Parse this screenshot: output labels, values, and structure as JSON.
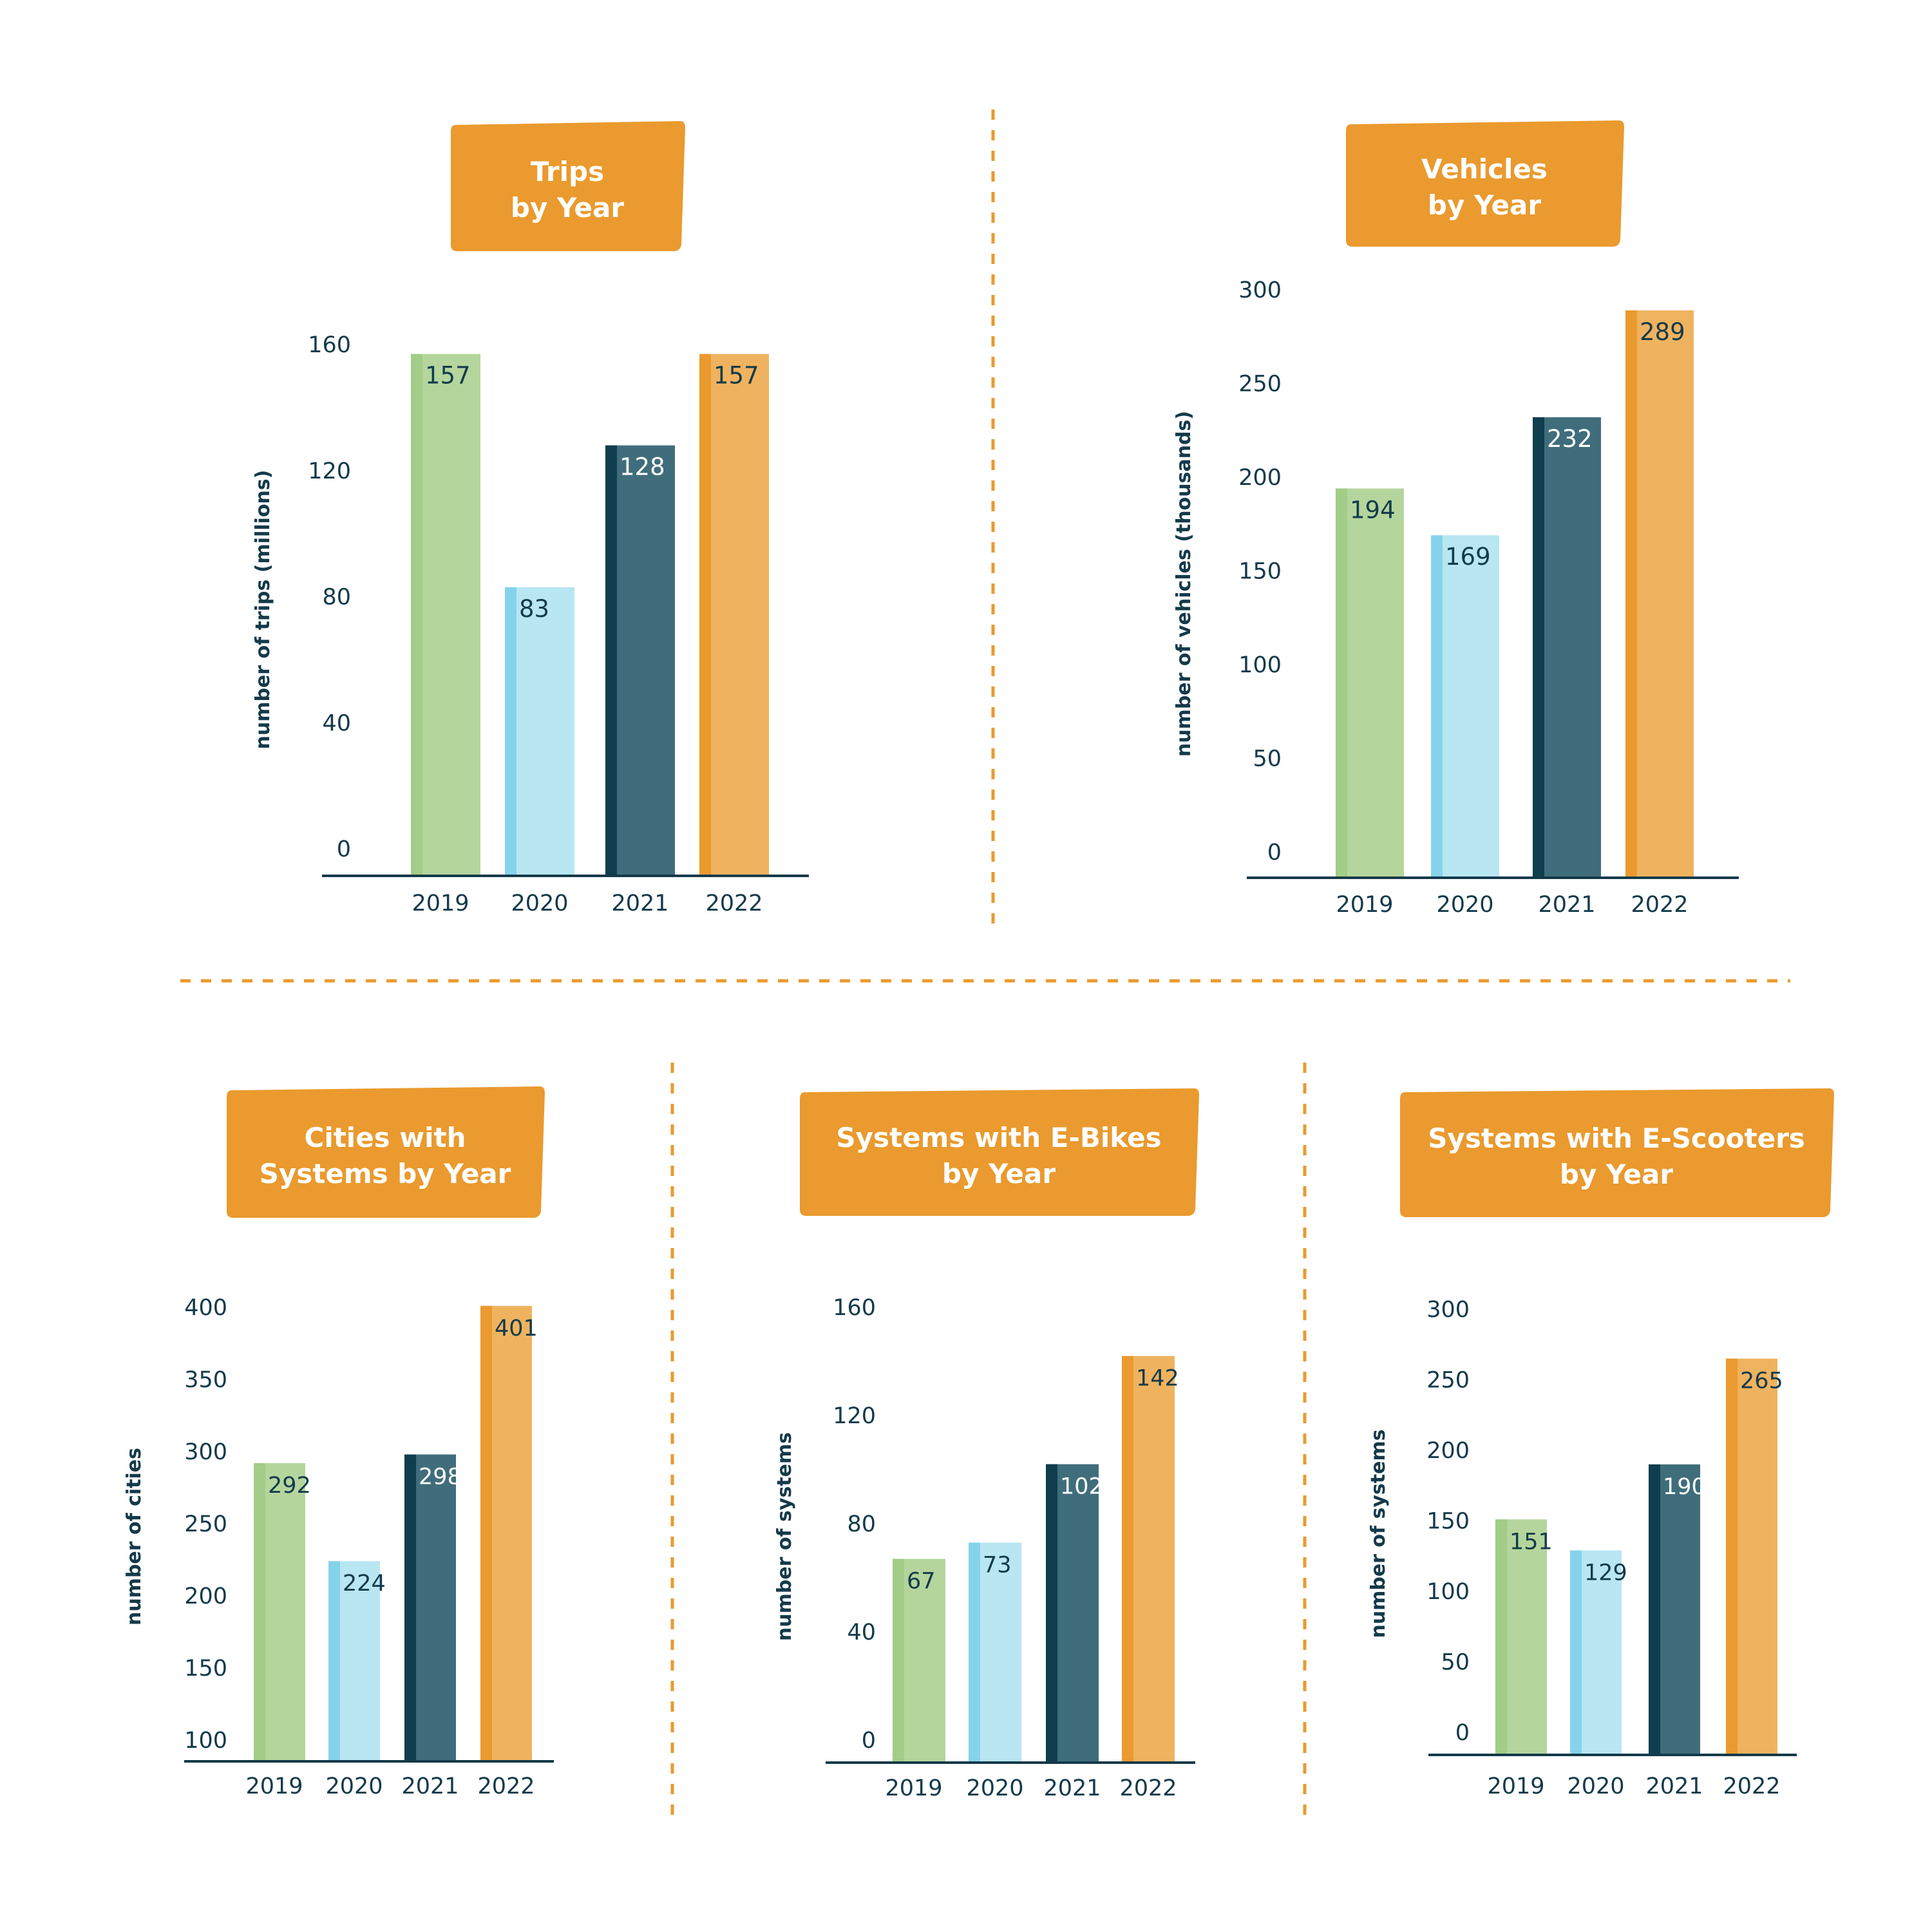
{
  "colors": {
    "bar_2019": "#b4d69d",
    "bar_2019_edge": "#a3cc88",
    "bar_2020": "#b8e6f3",
    "bar_2020_edge": "#85d3ea",
    "bar_2021": "#406d7b",
    "bar_2021_edge": "#0f3e4e",
    "bar_2022": "#efb35f",
    "bar_2022_edge": "#ea9a2e",
    "title_bg": "#ea9a2e",
    "text": "#143a4a",
    "divider": "#ea9a2e"
  },
  "chart_data": [
    {
      "type": "bar",
      "title": "Trips\nby Year",
      "ylabel": "number of trips (millions)",
      "categories": [
        "2019",
        "2020",
        "2021",
        "2022"
      ],
      "values": [
        157,
        83,
        128,
        157
      ],
      "ylim": [
        0,
        160
      ],
      "yticks": [
        0,
        40,
        80,
        120,
        160
      ],
      "grid": false,
      "legend": "none"
    },
    {
      "type": "bar",
      "title": "Vehicles\nby Year",
      "ylabel": "number of vehicles (thousands)",
      "categories": [
        "2019",
        "2020",
        "2021",
        "2022"
      ],
      "values": [
        194,
        169,
        232,
        289
      ],
      "ylim": [
        0,
        300
      ],
      "yticks": [
        0,
        50,
        100,
        150,
        200,
        250,
        300
      ],
      "grid": false,
      "legend": "none"
    },
    {
      "type": "bar",
      "title": "Cities with\nSystems by Year",
      "ylabel": "number of cities",
      "categories": [
        "2019",
        "2020",
        "2021",
        "2022"
      ],
      "values": [
        292,
        224,
        298,
        401
      ],
      "ylim": [
        100,
        400
      ],
      "yticks": [
        100,
        150,
        200,
        250,
        300,
        350,
        400
      ],
      "grid": false,
      "legend": "none"
    },
    {
      "type": "bar",
      "title": "Systems with E-Bikes\nby Year",
      "ylabel": "number of systems",
      "categories": [
        "2019",
        "2020",
        "2021",
        "2022"
      ],
      "values": [
        67,
        73,
        102,
        142
      ],
      "ylim": [
        0,
        160
      ],
      "yticks": [
        0,
        40,
        80,
        120,
        160
      ],
      "grid": false,
      "legend": "none"
    },
    {
      "type": "bar",
      "title": "Systems with E-Scooters\nby Year",
      "ylabel": "number of systems",
      "categories": [
        "2019",
        "2020",
        "2021",
        "2022"
      ],
      "values": [
        151,
        129,
        190,
        265
      ],
      "ylim": [
        0,
        300
      ],
      "yticks": [
        0,
        50,
        100,
        150,
        200,
        250,
        300
      ],
      "grid": false,
      "legend": "none"
    }
  ]
}
